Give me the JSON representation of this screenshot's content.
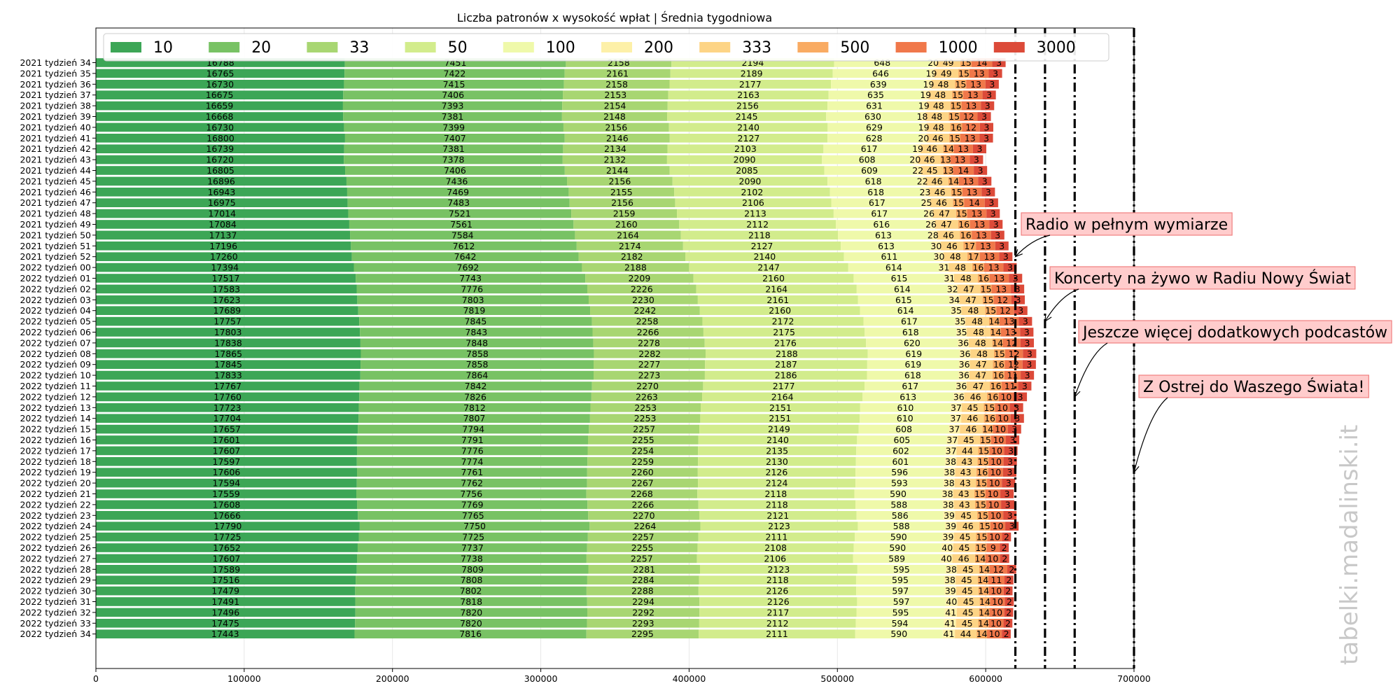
{
  "chart_data": {
    "type": "bar",
    "orientation": "horizontal",
    "stacked": true,
    "title": "Liczba patronów x wysokość wpłat | Średnia tygodniowa",
    "legend_position": "top",
    "grid": true,
    "xlim": [
      0,
      700000
    ],
    "x_ticks": [
      "0",
      "100000",
      "200000",
      "300000",
      "400000",
      "500000",
      "600000",
      "700000"
    ],
    "x_tick_values": [
      0,
      100000,
      200000,
      300000,
      400000,
      500000,
      600000,
      700000
    ],
    "categories": [
      "2021 tydzień 34",
      "2021 tydzień 35",
      "2021 tydzień 36",
      "2021 tydzień 37",
      "2021 tydzień 38",
      "2021 tydzień 39",
      "2021 tydzień 40",
      "2021 tydzień 41",
      "2021 tydzień 42",
      "2021 tydzień 43",
      "2021 tydzień 44",
      "2021 tydzień 45",
      "2021 tydzień 46",
      "2021 tydzień 47",
      "2021 tydzień 48",
      "2021 tydzień 49",
      "2021 tydzień 50",
      "2021 tydzień 51",
      "2021 tydzień 52",
      "2022 tydzień 00",
      "2022 tydzień 01",
      "2022 tydzień 02",
      "2022 tydzień 03",
      "2022 tydzień 04",
      "2022 tydzień 05",
      "2022 tydzień 06",
      "2022 tydzień 07",
      "2022 tydzień 08",
      "2022 tydzień 09",
      "2022 tydzień 10",
      "2022 tydzień 11",
      "2022 tydzień 12",
      "2022 tydzień 13",
      "2022 tydzień 14",
      "2022 tydzień 15",
      "2022 tydzień 16",
      "2022 tydzień 17",
      "2022 tydzień 18",
      "2022 tydzień 19",
      "2022 tydzień 20",
      "2022 tydzień 21",
      "2022 tydzień 22",
      "2022 tydzień 23",
      "2022 tydzień 24",
      "2022 tydzień 25",
      "2022 tydzień 26",
      "2022 tydzień 27",
      "2022 tydzień 28",
      "2022 tydzień 29",
      "2022 tydzień 30",
      "2022 tydzień 31",
      "2022 tydzień 32",
      "2022 tydzień 33",
      "2022 tydzień 34"
    ],
    "series": [
      {
        "name": "10",
        "multiplier": 10,
        "color": "#3ca656",
        "values": [
          16788,
          16765,
          16730,
          16675,
          16659,
          16668,
          16730,
          16800,
          16739,
          16720,
          16805,
          16896,
          16943,
          16975,
          17014,
          17084,
          17137,
          17196,
          17260,
          17394,
          17517,
          17583,
          17623,
          17689,
          17757,
          17803,
          17838,
          17865,
          17845,
          17833,
          17767,
          17760,
          17723,
          17704,
          17657,
          17601,
          17607,
          17597,
          17606,
          17594,
          17559,
          17608,
          17666,
          17790,
          17725,
          17652,
          17607,
          17589,
          17516,
          17479,
          17491,
          17496,
          17475,
          17443
        ]
      },
      {
        "name": "20",
        "multiplier": 20,
        "color": "#78c264",
        "values": [
          7451,
          7422,
          7415,
          7406,
          7393,
          7381,
          7399,
          7407,
          7381,
          7378,
          7406,
          7436,
          7469,
          7483,
          7521,
          7561,
          7584,
          7612,
          7642,
          7692,
          7743,
          7776,
          7803,
          7819,
          7845,
          7843,
          7848,
          7858,
          7858,
          7864,
          7842,
          7826,
          7812,
          7807,
          7794,
          7791,
          7776,
          7774,
          7761,
          7762,
          7756,
          7769,
          7765,
          7750,
          7725,
          7737,
          7738,
          7809,
          7808,
          7802,
          7818,
          7820,
          7820,
          7816
        ]
      },
      {
        "name": "33",
        "multiplier": 33,
        "color": "#a8d672",
        "values": [
          2158,
          2161,
          2158,
          2153,
          2154,
          2148,
          2156,
          2146,
          2134,
          2132,
          2144,
          2156,
          2155,
          2156,
          2159,
          2160,
          2164,
          2174,
          2182,
          2188,
          2209,
          2226,
          2230,
          2242,
          2258,
          2266,
          2278,
          2282,
          2277,
          2273,
          2270,
          2263,
          2253,
          2253,
          2257,
          2255,
          2254,
          2259,
          2260,
          2267,
          2268,
          2266,
          2270,
          2264,
          2257,
          2255,
          2257,
          2281,
          2284,
          2288,
          2294,
          2292,
          2293,
          2295
        ]
      },
      {
        "name": "50",
        "multiplier": 50,
        "color": "#d2ec8c",
        "values": [
          2194,
          2189,
          2177,
          2163,
          2156,
          2145,
          2140,
          2127,
          2103,
          2090,
          2085,
          2090,
          2102,
          2106,
          2113,
          2112,
          2118,
          2127,
          2140,
          2147,
          2160,
          2164,
          2161,
          2160,
          2172,
          2175,
          2176,
          2188,
          2187,
          2186,
          2177,
          2164,
          2151,
          2151,
          2149,
          2140,
          2135,
          2130,
          2126,
          2124,
          2118,
          2118,
          2121,
          2123,
          2111,
          2108,
          2106,
          2123,
          2118,
          2126,
          2126,
          2117,
          2112,
          2111
        ]
      },
      {
        "name": "100",
        "multiplier": 100,
        "color": "#eff9aa",
        "values": [
          648,
          646,
          639,
          635,
          631,
          630,
          629,
          628,
          617,
          608,
          609,
          618,
          618,
          617,
          617,
          616,
          613,
          613,
          611,
          614,
          615,
          614,
          615,
          614,
          617,
          618,
          620,
          619,
          619,
          618,
          617,
          613,
          610,
          610,
          608,
          605,
          602,
          601,
          596,
          593,
          590,
          588,
          586,
          588,
          590,
          590,
          589,
          595,
          595,
          597,
          597,
          595,
          594,
          590
        ]
      },
      {
        "name": "200",
        "multiplier": 200,
        "color": "#fdf0a8",
        "values": [
          20,
          19,
          19,
          19,
          19,
          18,
          19,
          20,
          19,
          20,
          22,
          22,
          23,
          25,
          26,
          26,
          28,
          30,
          30,
          31,
          31,
          32,
          34,
          35,
          35,
          35,
          36,
          36,
          36,
          36,
          36,
          36,
          37,
          37,
          37,
          37,
          37,
          38,
          38,
          38,
          38,
          38,
          39,
          39,
          39,
          40,
          40,
          38,
          38,
          39,
          40,
          41,
          41,
          41
        ]
      },
      {
        "name": "333",
        "multiplier": 333,
        "color": "#fdd485",
        "values": [
          49,
          49,
          48,
          48,
          48,
          48,
          48,
          46,
          46,
          46,
          45,
          46,
          46,
          46,
          47,
          47,
          46,
          46,
          48,
          48,
          48,
          47,
          47,
          48,
          48,
          48,
          48,
          48,
          47,
          47,
          47,
          46,
          45,
          46,
          46,
          45,
          44,
          43,
          43,
          43,
          43,
          43,
          45,
          46,
          45,
          45,
          46,
          45,
          45,
          45,
          45,
          45,
          45,
          44
        ]
      },
      {
        "name": "500",
        "multiplier": 500,
        "color": "#f9ab62",
        "values": [
          15,
          15,
          15,
          15,
          15,
          15,
          16,
          15,
          14,
          13,
          13,
          14,
          15,
          15,
          15,
          16,
          16,
          17,
          17,
          16,
          16,
          15,
          15,
          15,
          14,
          14,
          14,
          15,
          16,
          16,
          16,
          16,
          15,
          16,
          14,
          15,
          15,
          15,
          16,
          15,
          15,
          15,
          15,
          15,
          15,
          15,
          14,
          14,
          14,
          14,
          14,
          14,
          14,
          14
        ]
      },
      {
        "name": "1000",
        "multiplier": 1000,
        "color": "#f0784a",
        "values": [
          14,
          13,
          13,
          13,
          13,
          12,
          12,
          13,
          13,
          13,
          14,
          13,
          13,
          14,
          13,
          13,
          13,
          13,
          13,
          13,
          13,
          13,
          12,
          12,
          13,
          13,
          12,
          12,
          12,
          11,
          11,
          10,
          10,
          10,
          10,
          10,
          10,
          10,
          10,
          10,
          10,
          10,
          10,
          10,
          10,
          9,
          10,
          12,
          11,
          10,
          10,
          10,
          10,
          10
        ]
      },
      {
        "name": "3000",
        "multiplier": 3000,
        "color": "#dc4a39",
        "values": [
          3,
          3,
          3,
          3,
          3,
          3,
          3,
          3,
          3,
          3,
          3,
          3,
          3,
          3,
          3,
          3,
          3,
          3,
          3,
          3,
          3,
          3,
          3,
          3,
          3,
          3,
          3,
          3,
          3,
          3,
          3,
          3,
          3,
          3,
          3,
          3,
          3,
          3,
          3,
          3,
          3,
          3,
          3,
          3,
          2,
          2,
          2,
          2,
          2,
          2,
          2,
          2,
          2,
          2
        ]
      }
    ],
    "reference_lines": [
      {
        "x": 620000,
        "style": "dash-dot"
      },
      {
        "x": 640000,
        "style": "dash-dot"
      },
      {
        "x": 660000,
        "style": "dash-dot"
      },
      {
        "x": 700000,
        "style": "dash-dot"
      }
    ],
    "annotations": [
      {
        "text": "Radio w pełnym wymiarze",
        "target_x": 620000,
        "target_category": "2021 tydzień 52"
      },
      {
        "text": "Koncerty na żywo w Radiu Nowy Świat",
        "target_x": 640000,
        "target_category": "2022 tydzień 05"
      },
      {
        "text": "Jeszcze więcej dodatkowych podcastów",
        "target_x": 660000,
        "target_category": "2022 tydzień 12"
      },
      {
        "text": "Z Ostrej do Waszego Świata!",
        "target_x": 700000,
        "target_category": "2022 tydzień 19"
      }
    ],
    "annotation_style": {
      "background": "#ffcccc",
      "border": "#f08080"
    }
  },
  "watermark": "tabelki.madalinski.it"
}
